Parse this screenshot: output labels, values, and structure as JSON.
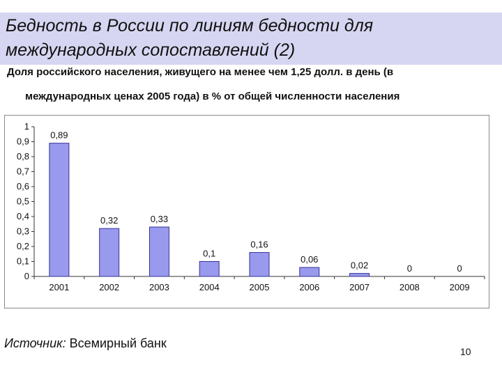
{
  "slide": {
    "title": "Бедность в России по линиям бедности для международных сопоставлений (2)",
    "subtitle_line1": "Доля российского населения, живущего на менее чем 1,25 долл.  в день (в",
    "subtitle_line2": "международных ценах 2005 года) в % от общей численности населения",
    "source_label": "Источник:",
    "source_text": " Всемирный банк",
    "page_number": "10"
  },
  "chart_data": {
    "type": "bar",
    "categories": [
      "2001",
      "2002",
      "2003",
      "2004",
      "2005",
      "2006",
      "2007",
      "2008",
      "2009"
    ],
    "values": [
      0.89,
      0.32,
      0.33,
      0.1,
      0.16,
      0.06,
      0.02,
      0,
      0
    ],
    "data_labels": [
      "0,89",
      "0,32",
      "0,33",
      "0,1",
      "0,16",
      "0,06",
      "0,02",
      "0",
      "0"
    ],
    "ylim": [
      0,
      1
    ],
    "y_ticks": [
      0,
      0.1,
      0.2,
      0.3,
      0.4,
      0.5,
      0.6,
      0.7,
      0.8,
      0.9,
      1
    ],
    "y_tick_labels": [
      "0",
      "0,1",
      "0,2",
      "0,3",
      "0,4",
      "0,5",
      "0,6",
      "0,7",
      "0,8",
      "0,9",
      "1"
    ],
    "grid": false,
    "legend": "none",
    "bar_color": "#9999ee",
    "bar_stroke": "#333399"
  }
}
